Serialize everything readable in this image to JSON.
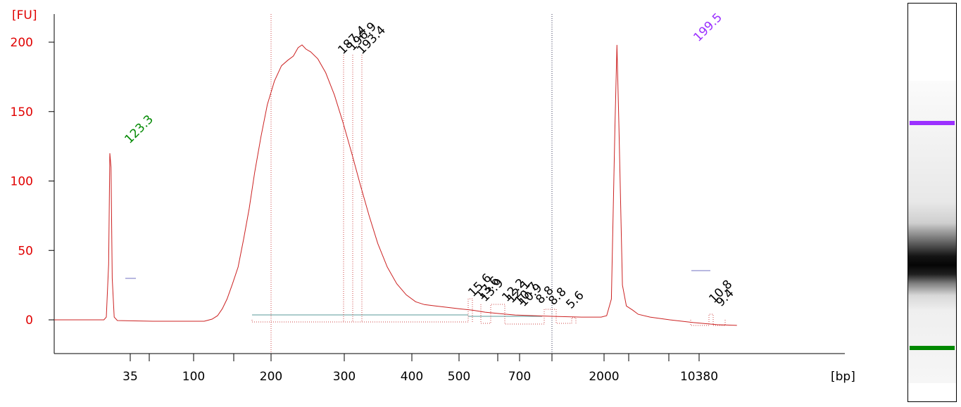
{
  "chart_data": {
    "type": "line",
    "ylabel": "[FU]",
    "xlabel": "[bp]",
    "ylim": [
      -25,
      220
    ],
    "y_ticks": [
      "0",
      "50",
      "100",
      "150",
      "200"
    ],
    "x_ticks": [
      "35",
      "100",
      "200",
      "300",
      "400",
      "500",
      "700",
      "2000",
      "10380"
    ],
    "grid": false,
    "axis_color": "#e00000",
    "trace_color": "#cc2222",
    "lower_marker": {
      "size": "35",
      "peak": 123.3,
      "label": "123.3",
      "color": "#008800"
    },
    "upper_marker": {
      "size": "10380",
      "peak": 199.5,
      "label": "199.5",
      "color": "#9b30ff"
    },
    "main_peak_labels": [
      "187.4",
      "196.9",
      "193.4"
    ],
    "small_peak_labels": [
      "15.6",
      "13.6",
      "13.9",
      "12.2",
      "12.1",
      "10.7",
      "10.9",
      "8.8",
      "8.8",
      "5.6",
      "10.8",
      "9.4"
    ],
    "series": [
      {
        "values_by_axis_position": [
          [
            0.0,
            0
          ],
          [
            6.3,
            0
          ],
          [
            6.6,
            2
          ],
          [
            6.9,
            40
          ],
          [
            7.05,
            120
          ],
          [
            7.2,
            110
          ],
          [
            7.35,
            30
          ],
          [
            7.6,
            2
          ],
          [
            8.0,
            -0.5
          ],
          [
            12.5,
            -1
          ],
          [
            19.0,
            -1
          ],
          [
            20.0,
            0.5
          ],
          [
            20.7,
            3
          ],
          [
            21.3,
            8
          ],
          [
            21.9,
            15
          ],
          [
            22.6,
            26
          ],
          [
            23.3,
            38
          ],
          [
            24.0,
            58
          ],
          [
            24.7,
            80
          ],
          [
            25.4,
            106
          ],
          [
            26.2,
            132
          ],
          [
            27.0,
            155
          ],
          [
            27.9,
            172
          ],
          [
            28.8,
            183
          ],
          [
            29.6,
            187
          ],
          [
            30.3,
            190
          ],
          [
            30.9,
            196
          ],
          [
            31.4,
            198
          ],
          [
            31.9,
            195
          ],
          [
            32.5,
            193
          ],
          [
            33.4,
            188
          ],
          [
            34.4,
            178
          ],
          [
            35.5,
            162
          ],
          [
            36.6,
            142
          ],
          [
            37.7,
            120
          ],
          [
            38.8,
            97
          ],
          [
            39.9,
            75
          ],
          [
            41.0,
            55
          ],
          [
            42.2,
            38
          ],
          [
            43.4,
            26
          ],
          [
            44.6,
            18
          ],
          [
            45.8,
            13
          ],
          [
            46.9,
            11
          ],
          [
            48.3,
            10
          ],
          [
            49.8,
            9
          ],
          [
            51.3,
            8
          ],
          [
            53.0,
            7
          ],
          [
            54.6,
            5.5
          ],
          [
            56.4,
            4.5
          ],
          [
            58.4,
            3.5
          ],
          [
            60.8,
            3
          ],
          [
            63.5,
            2.5
          ],
          [
            66.8,
            2
          ],
          [
            69.3,
            2
          ],
          [
            70.0,
            3
          ],
          [
            70.6,
            15
          ],
          [
            71.05,
            140
          ],
          [
            71.3,
            198
          ],
          [
            71.55,
            140
          ],
          [
            72.0,
            25
          ],
          [
            72.5,
            10
          ],
          [
            73.3,
            7
          ],
          [
            74.0,
            4
          ],
          [
            75.5,
            2
          ],
          [
            78.0,
            0
          ],
          [
            81.0,
            -2
          ],
          [
            84.0,
            -3.5
          ],
          [
            86.5,
            -4
          ]
        ]
      }
    ]
  }
}
